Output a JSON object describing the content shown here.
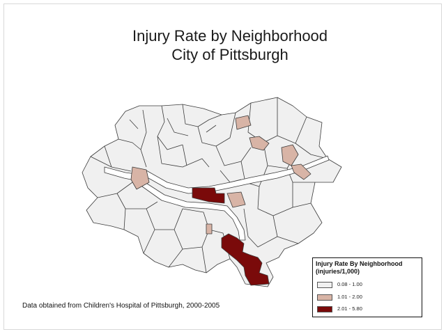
{
  "map": {
    "title_line1": "Injury Rate by Neighborhood",
    "title_line2": "City of Pittsburgh",
    "source": "Data obtained from Children's Hospital of Pittsburgh, 2000-2005",
    "colors": {
      "low": "#f0f0f0",
      "mid": "#d8b4a6",
      "high": "#7a0a0a",
      "border": "#3a3a3a",
      "river": "#ffffff"
    }
  },
  "legend": {
    "title": "Injury Rate By Neighborhood",
    "subtitle": "(injuries/1,000)",
    "classes": [
      {
        "label": "0.08 - 1.00",
        "color": "#f0f0f0"
      },
      {
        "label": "1.01 - 2.00",
        "color": "#d8b4a6"
      },
      {
        "label": "2.01 - 5.80",
        "color": "#7a0a0a"
      }
    ]
  }
}
